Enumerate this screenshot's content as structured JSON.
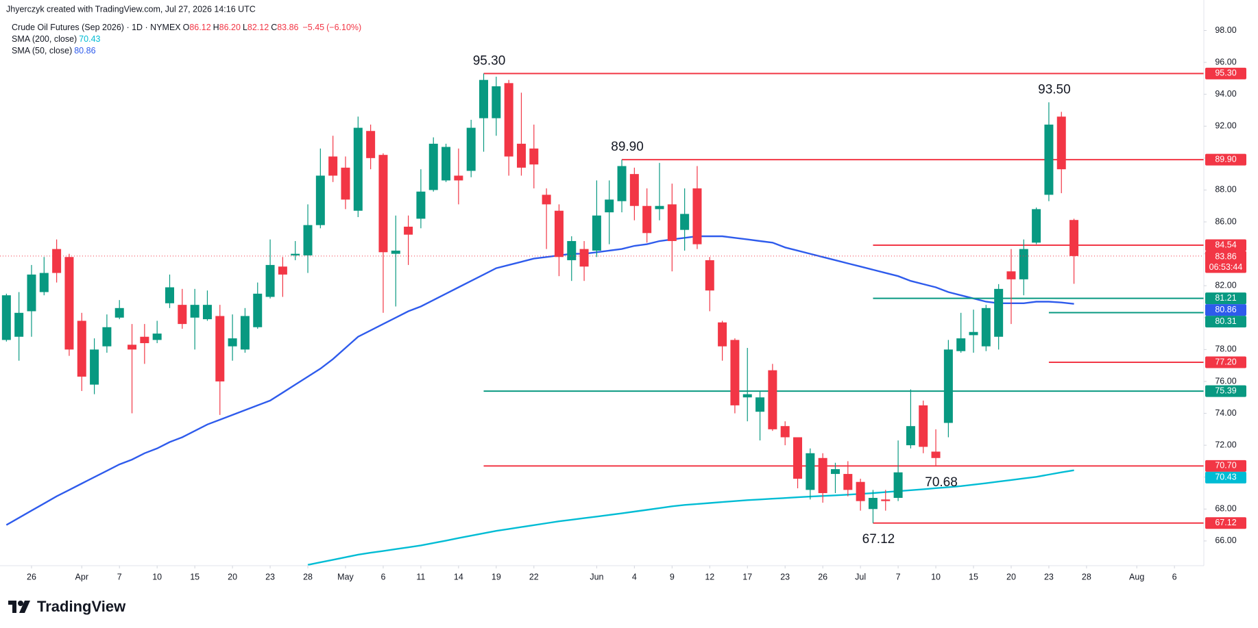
{
  "chart_data": {
    "type": "candlestick",
    "attribution": "Jhyerczyk created with TradingView.com, Jul 27, 2026 14:16 UTC",
    "title": "Crude Oil Futures (Sep 2026) · 1D · NYMEX",
    "ohlc_header": [
      {
        "name": "O",
        "value": 86.12
      },
      {
        "name": "H",
        "value": 86.2,
        "label": "86.20"
      },
      {
        "name": "L",
        "value": 82.12
      },
      {
        "name": "C",
        "value": 83.86
      }
    ],
    "change": {
      "value": -5.45,
      "label": "−5.45"
    },
    "change_pct": {
      "value": -6.1,
      "label": "(−6.10%)"
    },
    "up_color": "#089981",
    "down_color": "#f23645",
    "open": [
      78.6,
      78.8,
      80.4,
      81.6,
      84.3,
      83.8,
      79.8,
      75.8,
      78.2,
      80.0,
      78.3,
      78.8,
      78.6,
      80.9,
      80.8,
      80.0,
      79.9,
      80.1,
      78.2,
      78.0,
      79.4,
      81.3,
      83.2,
      83.9,
      83.9,
      85.8,
      90.1,
      89.4,
      86.7,
      91.7,
      90.2,
      84.0,
      85.7,
      86.2,
      88.0,
      88.6,
      88.9,
      89.2,
      92.5,
      92.5,
      94.7,
      90.9,
      90.6,
      87.7,
      86.7,
      83.6,
      84.3,
      84.2,
      86.6,
      87.3,
      89.0,
      87.0,
      86.8,
      87.1,
      85.5,
      88.1,
      83.6,
      79.7,
      78.6,
      75.0,
      74.1,
      76.7,
      73.2,
      72.5,
      69.2,
      71.2,
      70.2,
      70.2,
      69.7,
      68.0,
      68.6,
      68.7,
      72.0,
      74.5,
      71.6,
      73.4,
      77.9,
      78.9,
      78.2,
      78.8,
      82.9,
      82.4,
      84.7,
      87.7,
      92.6,
      86.12
    ],
    "high": [
      81.5,
      81.6,
      83.3,
      83.8,
      84.9,
      84.0,
      80.3,
      78.7,
      80.2,
      81.1,
      79.6,
      79.6,
      79.8,
      82.7,
      81.8,
      81.8,
      81.7,
      80.8,
      80.2,
      80.6,
      82.2,
      84.9,
      83.8,
      84.8,
      87.1,
      90.6,
      91.4,
      90.1,
      92.6,
      92.1,
      90.3,
      86.4,
      86.4,
      89.3,
      91.3,
      90.9,
      90.6,
      92.4,
      95.3,
      95.1,
      94.9,
      94.1,
      92.1,
      88.1,
      87.1,
      85.1,
      84.8,
      88.6,
      88.6,
      89.9,
      89.4,
      88.1,
      89.7,
      88.4,
      88.1,
      89.5,
      83.8,
      79.8,
      78.7,
      78.1,
      75.4,
      77.1,
      73.5,
      72.5,
      71.8,
      71.5,
      70.9,
      71.0,
      69.9,
      69.2,
      69.2,
      72.3,
      75.5,
      74.8,
      73.0,
      78.6,
      80.3,
      80.5,
      80.8,
      82.1,
      84.3,
      84.9,
      86.9,
      93.5,
      92.9,
      86.2
    ],
    "low": [
      78.5,
      77.3,
      78.8,
      81.4,
      82.2,
      77.6,
      75.4,
      75.2,
      77.8,
      79.9,
      74.0,
      77.1,
      78.4,
      80.6,
      79.3,
      78.0,
      79.8,
      73.9,
      77.3,
      77.8,
      79.3,
      81.2,
      81.3,
      83.6,
      82.8,
      85.6,
      88.5,
      86.8,
      86.3,
      89.3,
      80.3,
      80.7,
      83.3,
      85.6,
      87.9,
      88.5,
      87.1,
      88.8,
      90.4,
      91.4,
      88.9,
      88.9,
      88.1,
      84.3,
      82.6,
      82.3,
      82.3,
      83.8,
      84.6,
      86.6,
      86.1,
      84.7,
      86.1,
      82.9,
      84.2,
      84.3,
      80.4,
      77.3,
      74.0,
      73.5,
      72.3,
      72.9,
      72.0,
      69.3,
      68.6,
      68.4,
      69.0,
      68.8,
      67.9,
      67.12,
      67.9,
      68.5,
      71.8,
      71.5,
      70.68,
      72.5,
      77.8,
      77.8,
      77.9,
      78.0,
      79.6,
      81.4,
      84.6,
      87.3,
      87.8,
      82.12
    ],
    "close": [
      81.4,
      80.3,
      82.7,
      82.8,
      82.8,
      78.0,
      76.3,
      78.0,
      79.4,
      80.6,
      78.0,
      78.4,
      79.0,
      81.9,
      79.6,
      80.8,
      80.8,
      76.0,
      78.7,
      80.1,
      81.5,
      83.3,
      82.7,
      84.0,
      85.8,
      88.9,
      88.9,
      87.4,
      91.9,
      90.0,
      84.1,
      84.2,
      85.2,
      87.9,
      90.9,
      90.7,
      88.6,
      91.9,
      94.9,
      94.5,
      90.1,
      89.4,
      89.6,
      87.1,
      83.8,
      84.8,
      83.2,
      86.4,
      87.4,
      89.5,
      87.0,
      85.3,
      87.0,
      84.8,
      86.5,
      84.6,
      81.7,
      78.2,
      74.5,
      75.2,
      75.0,
      73.0,
      72.5,
      69.9,
      71.5,
      69.0,
      70.5,
      69.2,
      68.5,
      68.7,
      68.5,
      70.3,
      73.2,
      71.9,
      71.2,
      78.0,
      78.7,
      79.1,
      80.6,
      81.8,
      82.4,
      84.3,
      86.8,
      92.1,
      89.3,
      83.86
    ],
    "countdown": "06:53:44",
    "indicators": [
      {
        "name": "SMA (200, close)",
        "color": "#00bcd4",
        "values": [
          null,
          null,
          null,
          null,
          null,
          null,
          null,
          null,
          null,
          null,
          null,
          null,
          null,
          null,
          null,
          null,
          null,
          null,
          null,
          null,
          null,
          null,
          null,
          null,
          64.5,
          64.66,
          64.82,
          64.98,
          65.14,
          65.26,
          65.37,
          65.49,
          65.6,
          65.72,
          65.87,
          66.02,
          66.18,
          66.33,
          66.48,
          66.63,
          66.75,
          66.87,
          66.99,
          67.11,
          67.23,
          67.33,
          67.43,
          67.53,
          67.63,
          67.73,
          67.84,
          67.95,
          68.06,
          68.17,
          68.26,
          68.32,
          68.38,
          68.44,
          68.5,
          68.56,
          68.6,
          68.65,
          68.69,
          68.74,
          68.78,
          68.82,
          68.86,
          68.9,
          68.95,
          69.0,
          69.06,
          69.12,
          69.18,
          69.24,
          69.31,
          69.37,
          69.44,
          69.53,
          69.62,
          69.72,
          69.82,
          69.92,
          70.02,
          70.16,
          70.3,
          70.43
        ]
      },
      {
        "name": "SMA (50, close)",
        "color": "#2e5bec",
        "values": [
          67.0,
          67.45,
          67.9,
          68.35,
          68.8,
          69.2,
          69.6,
          70.0,
          70.4,
          70.8,
          71.1,
          71.5,
          71.8,
          72.2,
          72.5,
          72.9,
          73.3,
          73.6,
          73.9,
          74.2,
          74.5,
          74.8,
          75.3,
          75.8,
          76.3,
          76.8,
          77.4,
          78.1,
          78.8,
          79.2,
          79.6,
          80.0,
          80.4,
          80.7,
          81.1,
          81.5,
          81.9,
          82.3,
          82.7,
          83.1,
          83.3,
          83.5,
          83.7,
          83.8,
          83.9,
          84.0,
          84.0,
          84.1,
          84.2,
          84.3,
          84.5,
          84.6,
          84.8,
          84.9,
          85.0,
          85.1,
          85.1,
          85.1,
          85.0,
          84.9,
          84.8,
          84.7,
          84.4,
          84.2,
          84.0,
          83.8,
          83.6,
          83.4,
          83.2,
          83.0,
          82.8,
          82.6,
          82.3,
          82.1,
          81.9,
          81.6,
          81.4,
          81.2,
          81.0,
          80.9,
          80.9,
          80.9,
          81.0,
          81.0,
          80.95,
          80.86
        ]
      }
    ],
    "levels": [
      {
        "value": 95.3,
        "label": "95.30",
        "color": "#f23645",
        "x_start": 38
      },
      {
        "value": 89.9,
        "label": "89.90",
        "color": "#f23645",
        "x_start": 49
      },
      {
        "value": 84.54,
        "color": "#f23645",
        "x_start": 69
      },
      {
        "value": 81.21,
        "color": "#089981",
        "x_start": 69
      },
      {
        "value": 80.31,
        "color": "#089981",
        "x_start": 83
      },
      {
        "value": 77.2,
        "label": "77.20",
        "color": "#f23645",
        "x_start": 83
      },
      {
        "value": 75.39,
        "color": "#089981",
        "x_start": 38
      },
      {
        "value": 70.7,
        "label": "70.70",
        "color": "#f23645",
        "x_start": 38
      },
      {
        "value": 67.12,
        "color": "#f23645",
        "x_start": 69
      }
    ],
    "annotations": [
      {
        "value": 95.3,
        "label": "95.30",
        "x": 38,
        "position": "above"
      },
      {
        "value": 89.9,
        "label": "89.90",
        "x": 49,
        "position": "above"
      },
      {
        "value": 93.5,
        "label": "93.50",
        "x": 83,
        "position": "above"
      },
      {
        "value": 70.68,
        "x": 74,
        "position": "below"
      },
      {
        "value": 67.12,
        "x": 69,
        "position": "below"
      }
    ],
    "ylim": [
      64.45,
      99.91
    ],
    "yticks": [
      {
        "value": 66,
        "label": "66.00"
      },
      {
        "value": 68,
        "label": "68.00"
      },
      {
        "value": 70,
        "label": "70.00"
      },
      {
        "value": 72,
        "label": "72.00"
      },
      {
        "value": 74,
        "label": "74.00"
      },
      {
        "value": 76,
        "label": "76.00"
      },
      {
        "value": 78,
        "label": "78.00"
      },
      {
        "value": 80,
        "label": "80.00"
      },
      {
        "value": 82,
        "label": "82.00"
      },
      {
        "value": 84,
        "label": "84.00"
      },
      {
        "value": 86,
        "label": "86.00"
      },
      {
        "value": 88,
        "label": "88.00"
      },
      {
        "value": 90,
        "label": "90.00"
      },
      {
        "value": 92,
        "label": "92.00"
      },
      {
        "value": 94,
        "label": "94.00"
      },
      {
        "value": 96,
        "label": "96.00"
      },
      {
        "value": 98,
        "label": "98.00"
      }
    ],
    "xlim": [
      -0.51,
      95.34
    ],
    "xticks": [
      {
        "value": 2,
        "label": "26"
      },
      {
        "value": 6,
        "label": "Apr"
      },
      {
        "value": 9,
        "label": "7"
      },
      {
        "value": 12,
        "label": "10"
      },
      {
        "value": 15,
        "label": "15"
      },
      {
        "value": 18,
        "label": "20"
      },
      {
        "value": 21,
        "label": "23"
      },
      {
        "value": 24,
        "label": "28"
      },
      {
        "value": 27,
        "label": "May"
      },
      {
        "value": 30,
        "label": "6"
      },
      {
        "value": 33,
        "label": "11"
      },
      {
        "value": 36,
        "label": "14"
      },
      {
        "value": 39,
        "label": "19"
      },
      {
        "value": 42,
        "label": "22"
      },
      {
        "value": 47,
        "label": "Jun"
      },
      {
        "value": 50,
        "label": "4"
      },
      {
        "value": 53,
        "label": "9"
      },
      {
        "value": 56,
        "label": "12"
      },
      {
        "value": 59,
        "label": "17"
      },
      {
        "value": 62,
        "label": "23"
      },
      {
        "value": 65,
        "label": "26"
      },
      {
        "value": 68,
        "label": "Jul"
      },
      {
        "value": 71,
        "label": "7"
      },
      {
        "value": 74,
        "label": "10"
      },
      {
        "value": 77,
        "label": "15"
      },
      {
        "value": 80,
        "label": "20"
      },
      {
        "value": 83,
        "label": "23"
      },
      {
        "value": 86,
        "label": "28"
      },
      {
        "value": 90,
        "label": "Aug"
      },
      {
        "value": 93,
        "label": "6"
      }
    ],
    "grid": false,
    "brand": "TradingView"
  }
}
